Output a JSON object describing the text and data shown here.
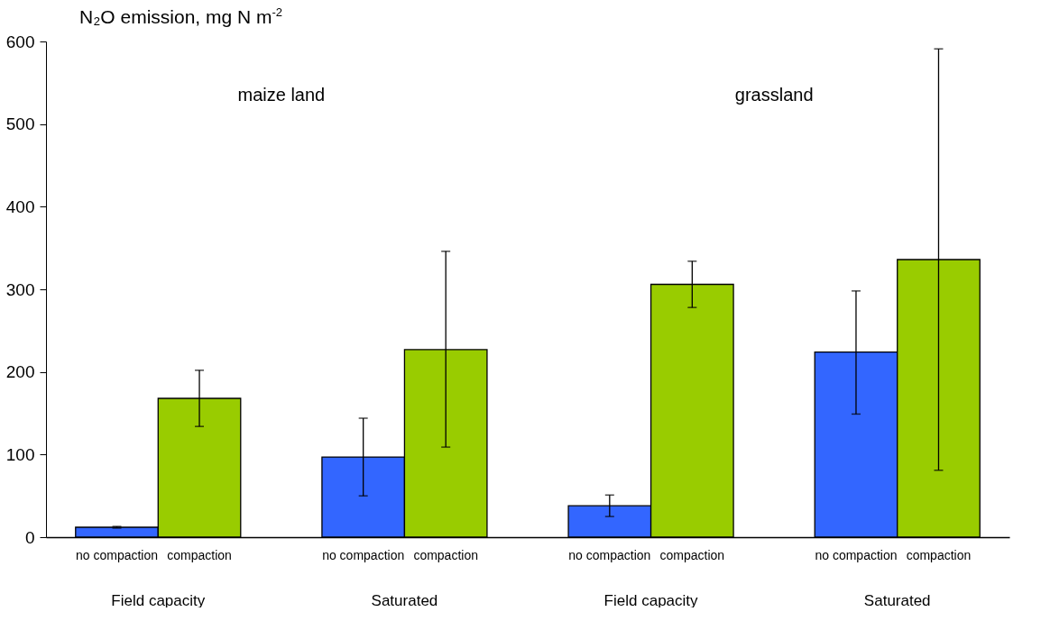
{
  "chart_data": {
    "type": "bar",
    "ylabel": "N₂O emission, mg N m$^{-2}$",
    "categories": [
      "Field  capacity",
      "Saturated",
      "Field  capacity",
      "Saturated"
    ],
    "series": [
      {
        "name": "no compaction",
        "color": "#3366ff",
        "values": [
          12,
          97,
          38,
          224
        ],
        "errors": [
          [
            11,
            13
          ],
          [
            50,
            144
          ],
          [
            25,
            51
          ],
          [
            149,
            298
          ]
        ]
      },
      {
        "name": "compaction",
        "color": "#99cc00",
        "values": [
          168,
          227,
          306,
          336
        ],
        "errors": [
          [
            134,
            202
          ],
          [
            109,
            346
          ],
          [
            278,
            334
          ],
          [
            81,
            591
          ]
        ]
      }
    ],
    "annotations": [
      "maize land",
      "grassland"
    ],
    "ylim": [
      0,
      600
    ],
    "yticks": [
      0,
      100,
      200,
      300,
      400,
      500,
      600
    ],
    "grid": false
  }
}
